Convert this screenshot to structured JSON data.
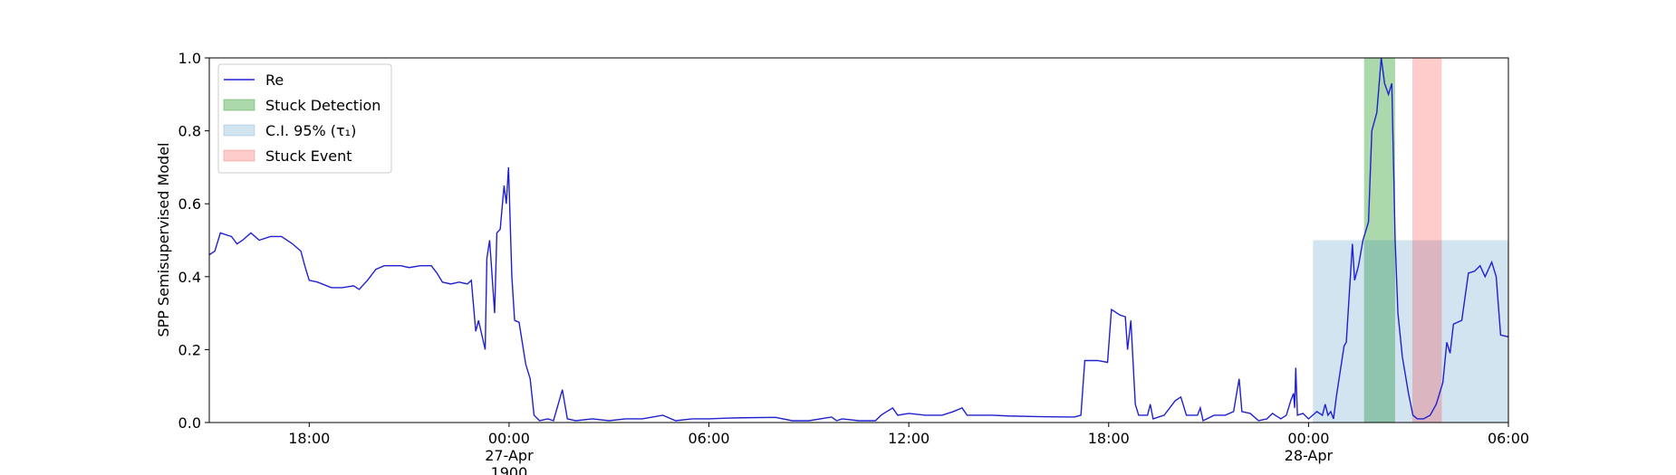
{
  "chart_data": {
    "type": "line",
    "ylabel": "SPP Semisupervised Model",
    "xlim": [
      "1900-04-26 15:00",
      "1900-04-28 06:00"
    ],
    "xticks": [
      {
        "value": "1900-04-26 18:00",
        "label": [
          "18:00"
        ]
      },
      {
        "value": "1900-04-27 00:00",
        "label": [
          "00:00",
          "27-Apr",
          "1900"
        ]
      },
      {
        "value": "1900-04-27 06:00",
        "label": [
          "06:00"
        ]
      },
      {
        "value": "1900-04-27 12:00",
        "label": [
          "12:00"
        ]
      },
      {
        "value": "1900-04-27 18:00",
        "label": [
          "18:00"
        ]
      },
      {
        "value": "1900-04-28 00:00",
        "label": [
          "00:00",
          "28-Apr"
        ]
      },
      {
        "value": "1900-04-28 06:00",
        "label": [
          "06:00"
        ]
      }
    ],
    "ylim": [
      0,
      1
    ],
    "yticks": [
      {
        "value": 0,
        "label": "0.0"
      },
      0.2,
      0.4,
      0.6,
      0.8,
      {
        "value": 1,
        "label": "1.0"
      }
    ],
    "legend": "upper left",
    "x": [
      "1900-04-26 15:00",
      "1900-04-26 15:10",
      "1900-04-26 15:20",
      "1900-04-26 15:40",
      "1900-04-26 15:50",
      "1900-04-26 16:00",
      "1900-04-26 16:15",
      "1900-04-26 16:30",
      "1900-04-26 16:50",
      "1900-04-26 17:10",
      "1900-04-26 17:30",
      "1900-04-26 17:45",
      "1900-04-26 17:52",
      "1900-04-26 18:00",
      "1900-04-26 18:15",
      "1900-04-26 18:40",
      "1900-04-26 19:00",
      "1900-04-26 19:20",
      "1900-04-26 19:30",
      "1900-04-26 19:45",
      "1900-04-26 20:00",
      "1900-04-26 20:15",
      "1900-04-26 20:45",
      "1900-04-26 21:00",
      "1900-04-26 21:20",
      "1900-04-26 21:40",
      "1900-04-26 21:50",
      "1900-04-26 22:00",
      "1900-04-26 22:15",
      "1900-04-26 22:30",
      "1900-04-26 22:45",
      "1900-04-26 22:52",
      "1900-04-26 23:00",
      "1900-04-26 23:05",
      "1900-04-26 23:17",
      "1900-04-26 23:20",
      "1900-04-26 23:25",
      "1900-04-26 23:34",
      "1900-04-26 23:38",
      "1900-04-26 23:44",
      "1900-04-26 23:51",
      "1900-04-26 23:55",
      "1900-04-26 23:59",
      "1900-04-27 00:05",
      "1900-04-27 00:10",
      "1900-04-27 00:18",
      "1900-04-27 00:30",
      "1900-04-27 00:38",
      "1900-04-27 00:45",
      "1900-04-27 00:55",
      "1900-04-27 01:10",
      "1900-04-27 01:20",
      "1900-04-27 01:36",
      "1900-04-27 01:45",
      "1900-04-27 02:00",
      "1900-04-27 02:30",
      "1900-04-27 03:00",
      "1900-04-27 03:30",
      "1900-04-27 04:00",
      "1900-04-27 04:37",
      "1900-04-27 05:00",
      "1900-04-27 05:30",
      "1900-04-27 06:00",
      "1900-04-27 06:30",
      "1900-04-27 07:00",
      "1900-04-27 08:00",
      "1900-04-27 08:30",
      "1900-04-27 09:00",
      "1900-04-27 09:41",
      "1900-04-27 09:50",
      "1900-04-27 10:00",
      "1900-04-27 10:30",
      "1900-04-27 11:00",
      "1900-04-27 11:10",
      "1900-04-27 11:20",
      "1900-04-27 11:31",
      "1900-04-27 11:40",
      "1900-04-27 12:00",
      "1900-04-27 12:30",
      "1900-04-27 13:00",
      "1900-04-27 13:20",
      "1900-04-27 13:36",
      "1900-04-27 13:45",
      "1900-04-27 14:30",
      "1900-04-27 15:00",
      "1900-04-27 16:00",
      "1900-04-27 16:58",
      "1900-04-27 17:10",
      "1900-04-27 17:17",
      "1900-04-27 17:40",
      "1900-04-27 17:58",
      "1900-04-27 18:05",
      "1900-04-27 18:20",
      "1900-04-27 18:30",
      "1900-04-27 18:34",
      "1900-04-27 18:40",
      "1900-04-27 18:48",
      "1900-04-27 18:54",
      "1900-04-27 19:10",
      "1900-04-27 19:15",
      "1900-04-27 19:20",
      "1900-04-27 19:40",
      "1900-04-27 20:00",
      "1900-04-27 20:10",
      "1900-04-27 20:20",
      "1900-04-27 20:40",
      "1900-04-27 20:45",
      "1900-04-27 20:50",
      "1900-04-27 21:10",
      "1900-04-27 21:30",
      "1900-04-27 21:45",
      "1900-04-27 21:55",
      "1900-04-27 22:00",
      "1900-04-27 22:15",
      "1900-04-27 22:30",
      "1900-04-27 22:45",
      "1900-04-27 22:55",
      "1900-04-27 23:10",
      "1900-04-27 23:20",
      "1900-04-27 23:28",
      "1900-04-27 23:33",
      "1900-04-27 23:35",
      "1900-04-27 23:37",
      "1900-04-27 23:40",
      "1900-04-27 23:50",
      "1900-04-28 00:00",
      "1900-04-28 00:15",
      "1900-04-28 00:25",
      "1900-04-28 00:30",
      "1900-04-28 00:35",
      "1900-04-28 00:40",
      "1900-04-28 00:45",
      "1900-04-28 00:50",
      "1900-04-28 01:04",
      "1900-04-28 01:08",
      "1900-04-28 01:19",
      "1900-04-28 01:23",
      "1900-04-28 01:30",
      "1900-04-28 01:38",
      "1900-04-28 01:48",
      "1900-04-28 01:54",
      "1900-04-28 02:03",
      "1900-04-28 02:11",
      "1900-04-28 02:17",
      "1900-04-28 02:24",
      "1900-04-28 02:30",
      "1900-04-28 02:36",
      "1900-04-28 02:41",
      "1900-04-28 02:49",
      "1900-04-28 03:00",
      "1900-04-28 03:08",
      "1900-04-28 03:16",
      "1900-04-28 03:27",
      "1900-04-28 03:39",
      "1900-04-28 03:50",
      "1900-04-28 04:02",
      "1900-04-28 04:09",
      "1900-04-28 04:15",
      "1900-04-28 04:21",
      "1900-04-28 04:36",
      "1900-04-28 04:48",
      "1900-04-28 04:59",
      "1900-04-28 05:09",
      "1900-04-28 05:18",
      "1900-04-28 05:30",
      "1900-04-28 05:38",
      "1900-04-28 05:46",
      "1900-04-28 06:00"
    ],
    "series": [
      {
        "name": "Re",
        "color": "#2020d0",
        "values": [
          0.46,
          0.47,
          0.52,
          0.51,
          0.49,
          0.5,
          0.52,
          0.5,
          0.51,
          0.51,
          0.49,
          0.47,
          0.43,
          0.39,
          0.385,
          0.37,
          0.37,
          0.375,
          0.365,
          0.39,
          0.42,
          0.43,
          0.43,
          0.425,
          0.43,
          0.43,
          0.41,
          0.385,
          0.38,
          0.385,
          0.38,
          0.39,
          0.25,
          0.28,
          0.2,
          0.45,
          0.5,
          0.3,
          0.52,
          0.53,
          0.65,
          0.6,
          0.7,
          0.4,
          0.28,
          0.275,
          0.16,
          0.12,
          0.02,
          0.005,
          0.01,
          0.005,
          0.09,
          0.01,
          0.005,
          0.01,
          0.005,
          0.01,
          0.01,
          0.02,
          0.005,
          0.01,
          0.01,
          0.012,
          0.013,
          0.014,
          0.005,
          0.005,
          0.015,
          0.005,
          0.01,
          0.005,
          0.005,
          0.02,
          0.03,
          0.04,
          0.02,
          0.025,
          0.02,
          0.02,
          0.03,
          0.04,
          0.02,
          0.02,
          0.018,
          0.016,
          0.015,
          0.02,
          0.17,
          0.17,
          0.165,
          0.31,
          0.295,
          0.29,
          0.2,
          0.28,
          0.05,
          0.02,
          0.02,
          0.05,
          0.01,
          0.02,
          0.06,
          0.07,
          0.02,
          0.02,
          0.04,
          0.005,
          0.02,
          0.02,
          0.03,
          0.12,
          0.03,
          0.025,
          0.005,
          0.01,
          0.025,
          0.01,
          0.02,
          0.06,
          0.08,
          0.04,
          0.15,
          0.02,
          0.025,
          0.01,
          0.03,
          0.02,
          0.05,
          0.02,
          0.03,
          0.01,
          0.07,
          0.21,
          0.22,
          0.49,
          0.39,
          0.43,
          0.5,
          0.55,
          0.8,
          0.85,
          1.0,
          0.93,
          0.9,
          0.93,
          0.5,
          0.3,
          0.18,
          0.08,
          0.02,
          0.01,
          0.01,
          0.02,
          0.05,
          0.11,
          0.22,
          0.19,
          0.27,
          0.28,
          0.41,
          0.415,
          0.43,
          0.4,
          0.44,
          0.4,
          0.24,
          0.235
        ]
      }
    ],
    "spans": [
      {
        "name": "Stuck Detection",
        "color": "#2ca02c",
        "opacity": 0.4,
        "x": [
          "1900-04-28 01:40",
          "1900-04-28 02:36"
        ],
        "y": [
          0,
          1
        ]
      },
      {
        "name": "C.I. 95% (τ₁)",
        "color": "#1f77b4",
        "opacity": 0.2,
        "x": [
          "1900-04-28 00:08",
          "1900-04-28 06:00"
        ],
        "y": [
          0,
          0.5
        ]
      },
      {
        "name": "Stuck Event",
        "color": "#ff0000",
        "opacity": 0.2,
        "x": [
          "1900-04-28 03:07",
          "1900-04-28 04:00"
        ],
        "y": [
          0,
          1
        ]
      }
    ]
  }
}
